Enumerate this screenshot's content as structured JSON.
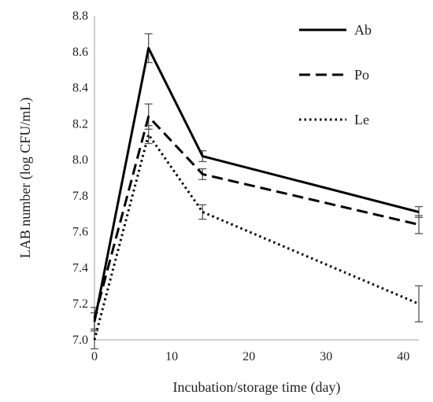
{
  "chart_data": {
    "type": "line",
    "xlabel": "Incubation/storage time (day)",
    "ylabel": "LAB number (log CFU/mL)",
    "xlim": [
      0,
      42
    ],
    "ylim": [
      7.0,
      8.8
    ],
    "xticks": [
      0,
      10,
      20,
      30,
      40
    ],
    "yticks": [
      7.0,
      7.2,
      7.4,
      7.6,
      7.8,
      8.0,
      8.2,
      8.4,
      8.6,
      8.8
    ],
    "grid": false,
    "legend_position": "top-right",
    "x": [
      0,
      7,
      14,
      42
    ],
    "series": [
      {
        "name": "Ab",
        "style": "solid",
        "values": [
          7.1,
          8.62,
          8.02,
          7.71
        ],
        "errors": [
          0.05,
          0.08,
          0.03,
          0.03
        ]
      },
      {
        "name": "Po",
        "style": "dashed",
        "values": [
          7.12,
          8.24,
          7.92,
          7.64
        ],
        "errors": [
          0.06,
          0.07,
          0.03,
          0.05
        ]
      },
      {
        "name": "Le",
        "style": "dotted",
        "values": [
          7.0,
          8.14,
          7.71,
          7.2
        ],
        "errors": [
          0.05,
          0.05,
          0.04,
          0.1
        ]
      }
    ]
  },
  "colors": {
    "line": "#000000",
    "axis": "#bfbfbf",
    "errorbar": "#555555"
  }
}
